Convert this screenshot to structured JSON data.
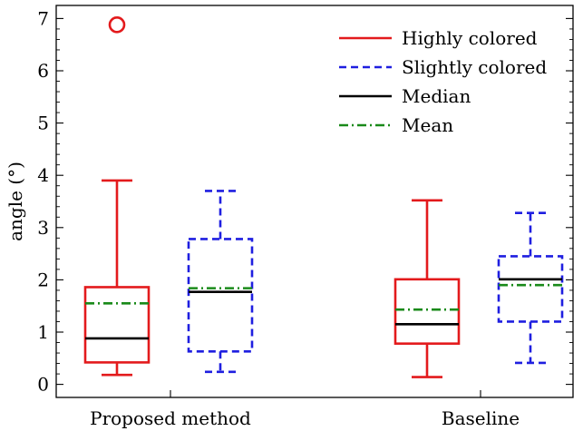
{
  "chart_data": {
    "type": "box",
    "title": "",
    "xlabel": "",
    "ylabel": "angle (°)",
    "ylim": [
      -0.25,
      7.25
    ],
    "yticks": [
      0,
      1,
      2,
      3,
      4,
      5,
      6,
      7
    ],
    "categories": [
      "Proposed method",
      "Baseline"
    ],
    "grid": false,
    "legend_position": "top-right",
    "series": [
      {
        "name": "Highly colored",
        "color": "#e31a1c",
        "line_style": "solid",
        "boxes": [
          {
            "category": "Proposed method",
            "whisker_low": 0.18,
            "q1": 0.42,
            "median": 0.88,
            "mean": 1.55,
            "q3": 1.86,
            "whisker_high": 3.9,
            "outliers": [
              6.88
            ]
          },
          {
            "category": "Baseline",
            "whisker_low": 0.14,
            "q1": 0.78,
            "median": 1.15,
            "mean": 1.43,
            "q3": 2.01,
            "whisker_high": 3.52,
            "outliers": []
          }
        ]
      },
      {
        "name": "Slightly colored",
        "color": "#1f1fe0",
        "line_style": "dashed",
        "boxes": [
          {
            "category": "Proposed method",
            "whisker_low": 0.24,
            "q1": 0.63,
            "median": 1.77,
            "mean": 1.84,
            "q3": 2.78,
            "whisker_high": 3.7,
            "outliers": []
          },
          {
            "category": "Baseline",
            "whisker_low": 0.41,
            "q1": 1.2,
            "median": 2.01,
            "mean": 1.9,
            "q3": 2.45,
            "whisker_high": 3.28,
            "outliers": []
          }
        ]
      }
    ],
    "median_color": "#000000",
    "mean_color": "#1a8a1a",
    "legend": [
      {
        "label": "Highly colored",
        "color": "#e31a1c",
        "dash": "solid"
      },
      {
        "label": "Slightly colored",
        "color": "#1f1fe0",
        "dash": "dashed"
      },
      {
        "label": "Median",
        "color": "#000000",
        "dash": "solid"
      },
      {
        "label": "Mean",
        "color": "#1a8a1a",
        "dash": "dashdot"
      }
    ]
  }
}
